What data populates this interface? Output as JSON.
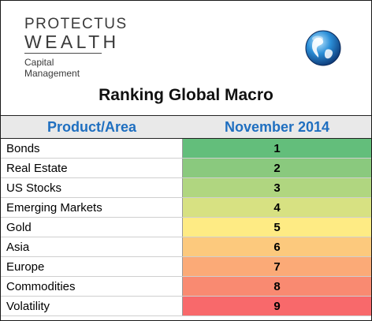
{
  "brand": {
    "line1": "PROTECTUS",
    "line2": "WEALTH",
    "line3": "Capital Management",
    "globe_icon": "globe-icon"
  },
  "title": "Ranking Global Macro",
  "table": {
    "headers": [
      "Product/Area",
      "November 2014"
    ],
    "rows": [
      {
        "name": "Bonds",
        "rank": "1",
        "color": "#63be7b"
      },
      {
        "name": "Real Estate",
        "rank": "2",
        "color": "#8ac97e"
      },
      {
        "name": "US Stocks",
        "rank": "3",
        "color": "#b0d680"
      },
      {
        "name": "Emerging Markets",
        "rank": "4",
        "color": "#d7e182"
      },
      {
        "name": "Gold",
        "rank": "5",
        "color": "#feeb84"
      },
      {
        "name": "Asia",
        "rank": "6",
        "color": "#fcc97d"
      },
      {
        "name": "Europe",
        "rank": "7",
        "color": "#fbaa77"
      },
      {
        "name": "Commodities",
        "rank": "8",
        "color": "#f98a71"
      },
      {
        "name": "Volatility",
        "rank": "9",
        "color": "#f8696b"
      }
    ]
  },
  "colors": {
    "header_text": "#1f6fc0",
    "header_bg": "#e9e9e9"
  }
}
